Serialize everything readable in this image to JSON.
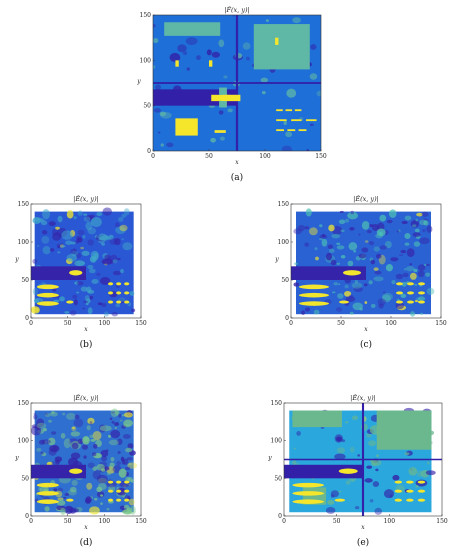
{
  "chart_data": [
    {
      "type": "heatmap",
      "title": "|F̂(x, y)|",
      "xlabel": "x",
      "ylabel": "y",
      "xlim": [
        0,
        150
      ],
      "ylim": [
        0,
        150
      ],
      "xticks": [
        0,
        50,
        100,
        150
      ],
      "yticks": [
        0,
        50,
        100,
        150
      ],
      "caption": "(a)",
      "noise": 0.25,
      "colors": {
        "background": "#1f6fd8",
        "low": "#3320a8",
        "mid": "#5fb7a6",
        "high": "#f5e62c"
      },
      "regions": [
        {
          "label": "top-left rectangle",
          "x": [
            10,
            60
          ],
          "y": [
            127,
            142
          ],
          "level": "mid"
        },
        {
          "label": "top-right square",
          "x": [
            90,
            140
          ],
          "y": [
            90,
            140
          ],
          "level": "mid"
        },
        {
          "label": "vertical divider",
          "x": [
            74,
            76
          ],
          "y": [
            0,
            150
          ],
          "level": "low"
        },
        {
          "label": "horizontal divider",
          "x": [
            0,
            150
          ],
          "y": [
            74,
            76
          ],
          "level": "low"
        },
        {
          "label": "dark strip",
          "x": [
            0,
            75
          ],
          "y": [
            50,
            68
          ],
          "level": "low"
        },
        {
          "label": "bright ellipse",
          "x": [
            52,
            78
          ],
          "y": [
            55,
            62
          ],
          "level": "high"
        },
        {
          "label": "yellow square",
          "x": [
            20,
            40
          ],
          "y": [
            17,
            36
          ],
          "level": "high"
        },
        {
          "label": "short bar",
          "x": [
            55,
            65
          ],
          "y": [
            20,
            23
          ],
          "level": "high"
        },
        {
          "label": "small marks",
          "x": [
            20,
            23
          ],
          "y": [
            93,
            100
          ],
          "level": "high"
        },
        {
          "label": "small marks",
          "x": [
            50,
            53
          ],
          "y": [
            93,
            100
          ],
          "level": "high"
        },
        {
          "label": "small mark",
          "x": [
            109,
            112
          ],
          "y": [
            117,
            125
          ],
          "level": "high"
        },
        {
          "label": "dashes row 1",
          "x": [
            110,
            135
          ],
          "y": [
            44,
            46
          ],
          "level": "high"
        },
        {
          "label": "dashes row 2",
          "x": [
            110,
            150
          ],
          "y": [
            33,
            35
          ],
          "level": "high"
        },
        {
          "label": "dashes row 3",
          "x": [
            110,
            140
          ],
          "y": [
            22,
            24
          ],
          "level": "high"
        }
      ]
    },
    {
      "type": "heatmap",
      "title": "|Ê(x, y)|",
      "xlabel": "x",
      "ylabel": "y",
      "xlim": [
        0,
        150
      ],
      "ylim": [
        0,
        150
      ],
      "xticks": [
        0,
        50,
        100,
        150
      ],
      "yticks": [
        0,
        50,
        100,
        150
      ],
      "caption": "(b)",
      "noise": 0.55,
      "colors": {
        "background": "#2a58d4",
        "low": "#3524a9",
        "mid": "#3fa6c8",
        "high": "#f1e52e"
      }
    },
    {
      "type": "heatmap",
      "title": "|Ê(x, y)|",
      "xlabel": "x",
      "ylabel": "y",
      "xlim": [
        0,
        150
      ],
      "ylim": [
        0,
        150
      ],
      "xticks": [
        0,
        50,
        100,
        150
      ],
      "yticks": [
        0,
        50,
        100,
        150
      ],
      "caption": "(c)",
      "noise": 0.6,
      "colors": {
        "background": "#2a62d4",
        "low": "#3524a9",
        "mid": "#4cbfb4",
        "high": "#f1e52e"
      }
    },
    {
      "type": "heatmap",
      "title": "|Ê(x, y)|",
      "xlabel": "x",
      "ylabel": "y",
      "xlim": [
        0,
        150
      ],
      "ylim": [
        0,
        150
      ],
      "xticks": [
        0,
        50,
        100,
        150
      ],
      "yticks": [
        0,
        50,
        100,
        150
      ],
      "caption": "(d)",
      "noise": 0.75,
      "colors": {
        "background": "#2f6fd0",
        "low": "#3524a9",
        "mid": "#7cc98a",
        "high": "#f1e52e"
      }
    },
    {
      "type": "heatmap",
      "title": "|Ê(x, y)|",
      "xlabel": "x",
      "ylabel": "y",
      "xlim": [
        0,
        150
      ],
      "ylim": [
        0,
        150
      ],
      "xticks": [
        0,
        50,
        100,
        150
      ],
      "yticks": [
        0,
        50,
        100,
        150
      ],
      "caption": "(e)",
      "noise": 0.3,
      "colors": {
        "background": "#2aa7dd",
        "low": "#3320a8",
        "mid": "#6bb88e",
        "high": "#f5e62c"
      }
    }
  ]
}
